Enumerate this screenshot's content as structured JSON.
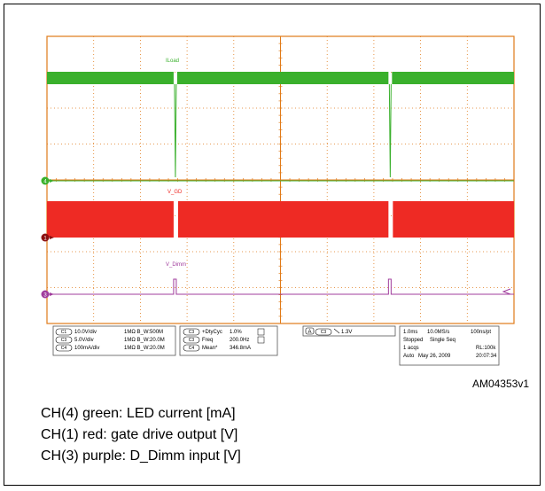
{
  "figure_id": "AM04353v1",
  "captions": [
    "CH(4) green: LED current [mA]",
    "CH(1) red: gate drive output [V]",
    "CH(3) purple: D_Dimm input [V]"
  ],
  "colors": {
    "grid": "#e07a18",
    "green": "#3ab02c",
    "red": "#ee2a24",
    "purple": "#a03c9c",
    "panel_border": "#555555"
  },
  "chart_data": {
    "type": "line",
    "title": "",
    "xlabel": "",
    "ylabel": "",
    "grid": true,
    "x_divisions": 10,
    "y_divisions": 8,
    "series": [
      {
        "name": "I_Load",
        "channel": "C4",
        "color": "green",
        "dips_at_div": [
          2.75,
          7.35
        ],
        "level": "high"
      },
      {
        "name": "V_GD",
        "channel": "C1",
        "color": "red",
        "gaps_at_div": [
          2.75,
          7.35
        ],
        "level": "switching"
      },
      {
        "name": "V_Dimm",
        "channel": "C3",
        "color": "purple",
        "pulses_at_div": [
          2.75,
          7.35
        ],
        "level": "low"
      }
    ],
    "trace_labels": [
      "ILoad",
      "V_GD",
      "V_Dimm"
    ],
    "channel_markers": [
      "4",
      "1",
      "3"
    ],
    "readouts": {
      "channels": [
        {
          "ch": "C1",
          "scale": "10.0V/div",
          "imp": "1MΩ B_W:500M"
        },
        {
          "ch": "C3",
          "scale": "5.0V/div",
          "imp": "1MΩ B_W:20.0M"
        },
        {
          "ch": "C4",
          "scale": "100mA/div",
          "imp": "1MΩ B_W:20.0M"
        }
      ],
      "measurements": [
        {
          "ch": "C3",
          "name": "+DtyCyc",
          "value": "1.0%"
        },
        {
          "ch": "C3",
          "name": "Freq",
          "value": "200.0Hz"
        },
        {
          "ch": "C4",
          "name": "Mean*",
          "value": "346.8mA"
        }
      ],
      "trigger": {
        "mode": "A",
        "ch": "C3",
        "level": "1.3V"
      },
      "timebase": {
        "line1": [
          "1.0ms",
          "10.0MS/s",
          "100ns/pt"
        ],
        "line2": [
          "Stopped",
          "Single Seq"
        ],
        "line3": [
          "1 acqs",
          "RL:100k"
        ],
        "line4": [
          "Auto",
          "May 26, 2009",
          "20:07:34"
        ]
      }
    }
  }
}
